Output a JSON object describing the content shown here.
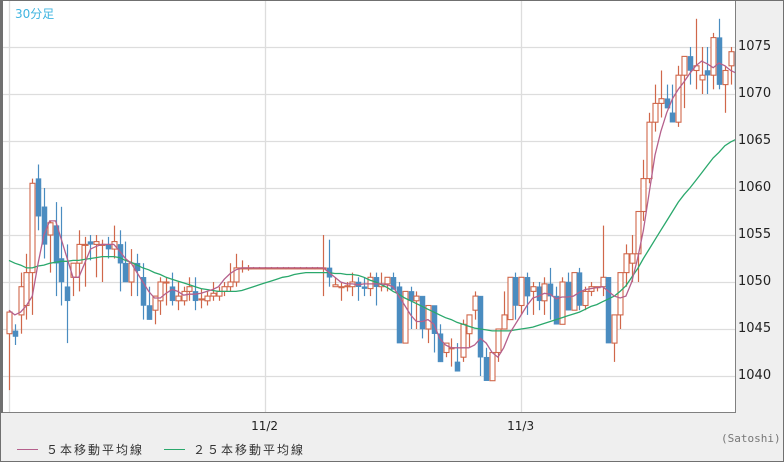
{
  "header": {
    "timeframe_label": "30分足"
  },
  "legend": {
    "items": [
      {
        "label": "５本移動平均線",
        "color": "#b5608c"
      },
      {
        "label": "２５本移動平均線",
        "color": "#2aa86c"
      }
    ]
  },
  "credit": "(Satoshi)",
  "colors": {
    "up": "#d0674a",
    "down": "#4a8cc0",
    "ma5": "#b5608c",
    "ma25": "#2aa86c",
    "grid": "#dddddd"
  },
  "chart_data": {
    "type": "candlestick",
    "title": "30分足",
    "xlabel": "",
    "ylabel": "",
    "ylim": [
      1035.5,
      1079.5
    ],
    "y_ticks": [
      1040,
      1045,
      1050,
      1055,
      1060,
      1065,
      1070,
      1075
    ],
    "x_ticks": [
      {
        "label": "11/2",
        "index": 44
      },
      {
        "label": "11/3",
        "index": 88
      }
    ],
    "grid": true,
    "legend_position": "bottom-left",
    "series_legend": [
      "５本移動平均線",
      "２５本移動平均線"
    ],
    "candles": [
      [
        1044.5,
        1047,
        1038.5,
        1046.8
      ],
      [
        1044.8,
        1045.5,
        1043.3,
        1044.2
      ],
      [
        1046.5,
        1051,
        1044.5,
        1049.5
      ],
      [
        1047.5,
        1053,
        1046,
        1051
      ],
      [
        1051,
        1061,
        1046.5,
        1060.5
      ],
      [
        1061,
        1062.5,
        1055.5,
        1057
      ],
      [
        1058,
        1060,
        1052.5,
        1054
      ],
      [
        1055,
        1056.5,
        1051,
        1056.3
      ],
      [
        1056,
        1058.5,
        1048.5,
        1052
      ],
      [
        1052.5,
        1058,
        1047.5,
        1050
      ],
      [
        1049.5,
        1054,
        1043.5,
        1048
      ],
      [
        1050.5,
        1052,
        1048.5,
        1052
      ],
      [
        1052,
        1055.5,
        1049,
        1054
      ],
      [
        1054,
        1054.8,
        1049.5,
        1054
      ],
      [
        1054.3,
        1055,
        1052.3,
        1054
      ],
      [
        1054,
        1055,
        1050.5,
        1054.3
      ],
      [
        1054,
        1054.5,
        1050,
        1054
      ],
      [
        1054,
        1054.8,
        1052.5,
        1053.5
      ],
      [
        1053.5,
        1056,
        1052.5,
        1054.3
      ],
      [
        1054,
        1055.5,
        1049,
        1052
      ],
      [
        1052,
        1054.3,
        1050,
        1050
      ],
      [
        1050,
        1053.5,
        1048.5,
        1052
      ],
      [
        1052,
        1053,
        1048.5,
        1051.2
      ],
      [
        1050.5,
        1052,
        1046,
        1047.5
      ],
      [
        1047.5,
        1049.5,
        1046,
        1046
      ],
      [
        1047,
        1048,
        1045.5,
        1048.5
      ],
      [
        1048,
        1050.5,
        1046.5,
        1050
      ],
      [
        1050,
        1050.5,
        1047.5,
        1050
      ],
      [
        1049.5,
        1051,
        1047.5,
        1048
      ],
      [
        1048,
        1050,
        1047,
        1048.5
      ],
      [
        1048,
        1049.5,
        1047.5,
        1049
      ],
      [
        1049,
        1050.5,
        1048,
        1049.5
      ],
      [
        1049,
        1050.5,
        1047,
        1048
      ],
      [
        1048.2,
        1049.3,
        1047.2,
        1048.2
      ],
      [
        1048,
        1049,
        1047.5,
        1048.5
      ],
      [
        1048.5,
        1050,
        1048,
        1048.8
      ],
      [
        1048.5,
        1049.5,
        1048,
        1049
      ],
      [
        1049,
        1050,
        1048.5,
        1049.5
      ],
      [
        1049.5,
        1052,
        1049,
        1050
      ],
      [
        1050,
        1053,
        1049.5,
        1051.5
      ],
      [
        1051.5,
        1052.3,
        1051,
        1051.5
      ],
      [
        1051.5,
        1051.8,
        1051.2,
        1051.5
      ],
      [
        1051.5,
        1051.6,
        1051.4,
        1051.5
      ],
      [
        1051.5,
        1051.6,
        1051.4,
        1051.5
      ],
      [
        1051.5,
        1051.6,
        1051.4,
        1051.5
      ],
      [
        1051.5,
        1051.6,
        1051.4,
        1051.5
      ],
      [
        1051.5,
        1051.6,
        1051.4,
        1051.5
      ],
      [
        1051.5,
        1051.6,
        1051.4,
        1051.5
      ],
      [
        1051.5,
        1051.6,
        1051.4,
        1051.5
      ],
      [
        1051.5,
        1051.6,
        1051.4,
        1051.5
      ],
      [
        1051.5,
        1051.6,
        1051.4,
        1051.5
      ],
      [
        1051.5,
        1051.6,
        1051.4,
        1051.5
      ],
      [
        1051.5,
        1051.6,
        1051.4,
        1051.5
      ],
      [
        1051.5,
        1051.6,
        1051.4,
        1051.5
      ],
      [
        1051.5,
        1055,
        1048.5,
        1051.5
      ],
      [
        1051.5,
        1054.5,
        1049.5,
        1050.5
      ],
      [
        1049.5,
        1050.5,
        1049.5,
        1049.7
      ],
      [
        1049.5,
        1050,
        1048,
        1049.5
      ],
      [
        1049.5,
        1050,
        1049,
        1049.6
      ],
      [
        1049.5,
        1051,
        1048.5,
        1050
      ],
      [
        1050,
        1050.5,
        1048,
        1049.5
      ],
      [
        1049.5,
        1050.5,
        1048.5,
        1049.3
      ],
      [
        1049.3,
        1051,
        1048.5,
        1050.5
      ],
      [
        1050.5,
        1051,
        1047.5,
        1049.5
      ],
      [
        1049.5,
        1051,
        1049,
        1049.8
      ],
      [
        1049.8,
        1050.5,
        1049,
        1050.5
      ],
      [
        1050.5,
        1051,
        1049.5,
        1049.2
      ],
      [
        1049.5,
        1050,
        1046,
        1043.5
      ],
      [
        1043.5,
        1049,
        1044,
        1049
      ],
      [
        1049,
        1049.5,
        1045,
        1048
      ],
      [
        1048,
        1049,
        1045,
        1048.5
      ],
      [
        1048.5,
        1047,
        1044,
        1045
      ],
      [
        1045,
        1046,
        1043.5,
        1047.5
      ],
      [
        1047.5,
        1047.5,
        1042.5,
        1044.5
      ],
      [
        1044.5,
        1045.5,
        1041.5,
        1041.5
      ],
      [
        1042.5,
        1043.5,
        1042,
        1043.5
      ],
      [
        1043,
        1044,
        1041,
        1043
      ],
      [
        1041.5,
        1043.5,
        1040.5,
        1040.5
      ],
      [
        1042,
        1046,
        1041.5,
        1045.5
      ],
      [
        1044.5,
        1046.5,
        1043,
        1046.5
      ],
      [
        1047,
        1049,
        1046,
        1048.5
      ],
      [
        1048.5,
        1048.5,
        1040,
        1042
      ],
      [
        1042,
        1043,
        1040,
        1039.5
      ],
      [
        1039.5,
        1042,
        1040,
        1042.5
      ],
      [
        1042.5,
        1045,
        1041.5,
        1045
      ],
      [
        1045,
        1049,
        1045,
        1046.5
      ],
      [
        1046,
        1050,
        1046.5,
        1050.5
      ],
      [
        1050.5,
        1051,
        1046,
        1047.5
      ],
      [
        1047.5,
        1050,
        1046.5,
        1050.5
      ],
      [
        1050.5,
        1051,
        1046.5,
        1048.5
      ],
      [
        1049,
        1050,
        1046.5,
        1049.5
      ],
      [
        1049.5,
        1050,
        1047,
        1048
      ],
      [
        1048,
        1050.5,
        1046.5,
        1049.8
      ],
      [
        1049.8,
        1051.5,
        1046,
        1048.5
      ],
      [
        1048.5,
        1049.5,
        1045.5,
        1045.5
      ],
      [
        1045.5,
        1050.5,
        1046,
        1050
      ],
      [
        1050,
        1051,
        1047,
        1047
      ],
      [
        1047,
        1051,
        1047,
        1051
      ],
      [
        1051,
        1051.5,
        1047,
        1047.5
      ],
      [
        1047.5,
        1049.5,
        1047,
        1049
      ],
      [
        1049,
        1050,
        1048.5,
        1049.5
      ],
      [
        1049.5,
        1049.5,
        1049,
        1049.5
      ],
      [
        1049.5,
        1056,
        1048.5,
        1050.5
      ],
      [
        1050.5,
        1050.5,
        1045,
        1043.5
      ],
      [
        1043.5,
        1046.5,
        1041.5,
        1046.5
      ],
      [
        1046.5,
        1051,
        1045,
        1051
      ],
      [
        1051,
        1054,
        1049.5,
        1053
      ],
      [
        1052,
        1055,
        1050,
        1053
      ],
      [
        1053,
        1054,
        1050,
        1057.5
      ],
      [
        1057.5,
        1063,
        1056.5,
        1061
      ],
      [
        1061,
        1068,
        1060.5,
        1067
      ],
      [
        1067,
        1071,
        1066,
        1069
      ],
      [
        1069,
        1072.5,
        1067.5,
        1069.5
      ],
      [
        1069.5,
        1071,
        1068.5,
        1068.5
      ],
      [
        1068,
        1071,
        1068,
        1067
      ],
      [
        1067,
        1073,
        1066.5,
        1072
      ],
      [
        1072,
        1073,
        1068.5,
        1074
      ],
      [
        1074,
        1075,
        1071,
        1072.5
      ],
      [
        1072.5,
        1078,
        1070.5,
        1073
      ],
      [
        1071.5,
        1075,
        1070,
        1072
      ],
      [
        1072.5,
        1075,
        1070,
        1072
      ],
      [
        1072,
        1076.5,
        1070.5,
        1076
      ],
      [
        1076,
        1078,
        1070.5,
        1071
      ],
      [
        1071,
        1073,
        1068,
        1072.5
      ],
      [
        1073,
        1075,
        1071,
        1074.5
      ],
      [
        1074.5,
        1074.5,
        1070.5,
        1070.5
      ],
      [
        1071,
        1074,
        1070.5,
        1073
      ]
    ],
    "ma5": [
      1047,
      1046.5,
      1046.8,
      1047.5,
      1048.5,
      1052,
      1055,
      1056.5,
      1056.5,
      1054.5,
      1052.5,
      1050.5,
      1050.5,
      1052,
      1053.5,
      1053.8,
      1054,
      1054,
      1054,
      1053.3,
      1052.5,
      1052,
      1051,
      1050,
      1049,
      1048.3,
      1048.3,
      1048.8,
      1049.2,
      1049,
      1048.6,
      1048.7,
      1048.7,
      1048.8,
      1049,
      1049.2,
      1049.5,
      1050.3,
      1050.9,
      1051.3,
      1051.5,
      1051.5,
      1051.5,
      1051.5,
      1051.5,
      1051.5,
      1051.5,
      1051.5,
      1051.5,
      1051.5,
      1051.5,
      1051.5,
      1051.5,
      1051.5,
      1051.5,
      1051,
      1050.5,
      1050,
      1049.8,
      1049.8,
      1049.7,
      1049.8,
      1049.8,
      1049.8,
      1049.8,
      1049.7,
      1049.5,
      1048.5,
      1047.5,
      1046.5,
      1045.8,
      1045.8,
      1046,
      1045.5,
      1044,
      1043.3,
      1043,
      1043,
      1043,
      1043,
      1043.3,
      1044,
      1043.5,
      1042.5,
      1042,
      1043,
      1044.5,
      1045.5,
      1046.5,
      1047.5,
      1048.3,
      1048.5,
      1048.8,
      1048.7,
      1048.2,
      1048.4,
      1048.4,
      1048.5,
      1048.9,
      1049.2,
      1049.3,
      1049.4,
      1049.5,
      1049,
      1048.5,
      1048.3,
      1048.5,
      1050,
      1052.5,
      1055.5,
      1059.5,
      1063.5,
      1066,
      1068,
      1069.5,
      1070.5,
      1071.3,
      1072.2,
      1073,
      1073.5,
      1073.2,
      1072.8,
      1073.3,
      1073,
      1072.5,
      1072.2,
      1072
    ],
    "ma25": [
      1052.3,
      1052,
      1051.8,
      1051.5,
      1051.5,
      1051.7,
      1051.8,
      1052,
      1052.1,
      1052.2,
      1052.2,
      1052.3,
      1052.3,
      1052.4,
      1052.5,
      1052.6,
      1052.7,
      1052.7,
      1052.7,
      1052.6,
      1052.3,
      1052.1,
      1051.8,
      1051.5,
      1051.3,
      1051,
      1050.8,
      1050.5,
      1050.3,
      1050.1,
      1049.9,
      1049.7,
      1049.5,
      1049.3,
      1049.2,
      1049.1,
      1049,
      1049,
      1049,
      1049,
      1049.1,
      1049.3,
      1049.5,
      1049.7,
      1049.9,
      1050.1,
      1050.3,
      1050.5,
      1050.6,
      1050.8,
      1050.9,
      1051,
      1051,
      1051,
      1051,
      1051,
      1050.9,
      1050.9,
      1050.8,
      1050.8,
      1050.7,
      1050.5,
      1050.2,
      1050,
      1049.7,
      1049.4,
      1049,
      1048.7,
      1048.3,
      1048,
      1047.7,
      1047.4,
      1047.1,
      1046.8,
      1046.5,
      1046.2,
      1046,
      1045.7,
      1045.5,
      1045.3,
      1045.1,
      1045,
      1044.9,
      1044.8,
      1044.8,
      1044.8,
      1044.8,
      1044.9,
      1045,
      1045.1,
      1045.2,
      1045.4,
      1045.6,
      1045.8,
      1046,
      1046.2,
      1046.4,
      1046.6,
      1046.8,
      1047.1,
      1047.4,
      1047.6,
      1047.9,
      1048.2,
      1048.5,
      1049,
      1049.6,
      1050.5,
      1051.4,
      1052.5,
      1053.5,
      1054.5,
      1055.5,
      1056.5,
      1057.5,
      1058.5,
      1059.3,
      1060,
      1060.8,
      1061.6,
      1062.4,
      1063.2,
      1063.8,
      1064.5,
      1064.9,
      1065.2,
      1065.5
    ]
  }
}
